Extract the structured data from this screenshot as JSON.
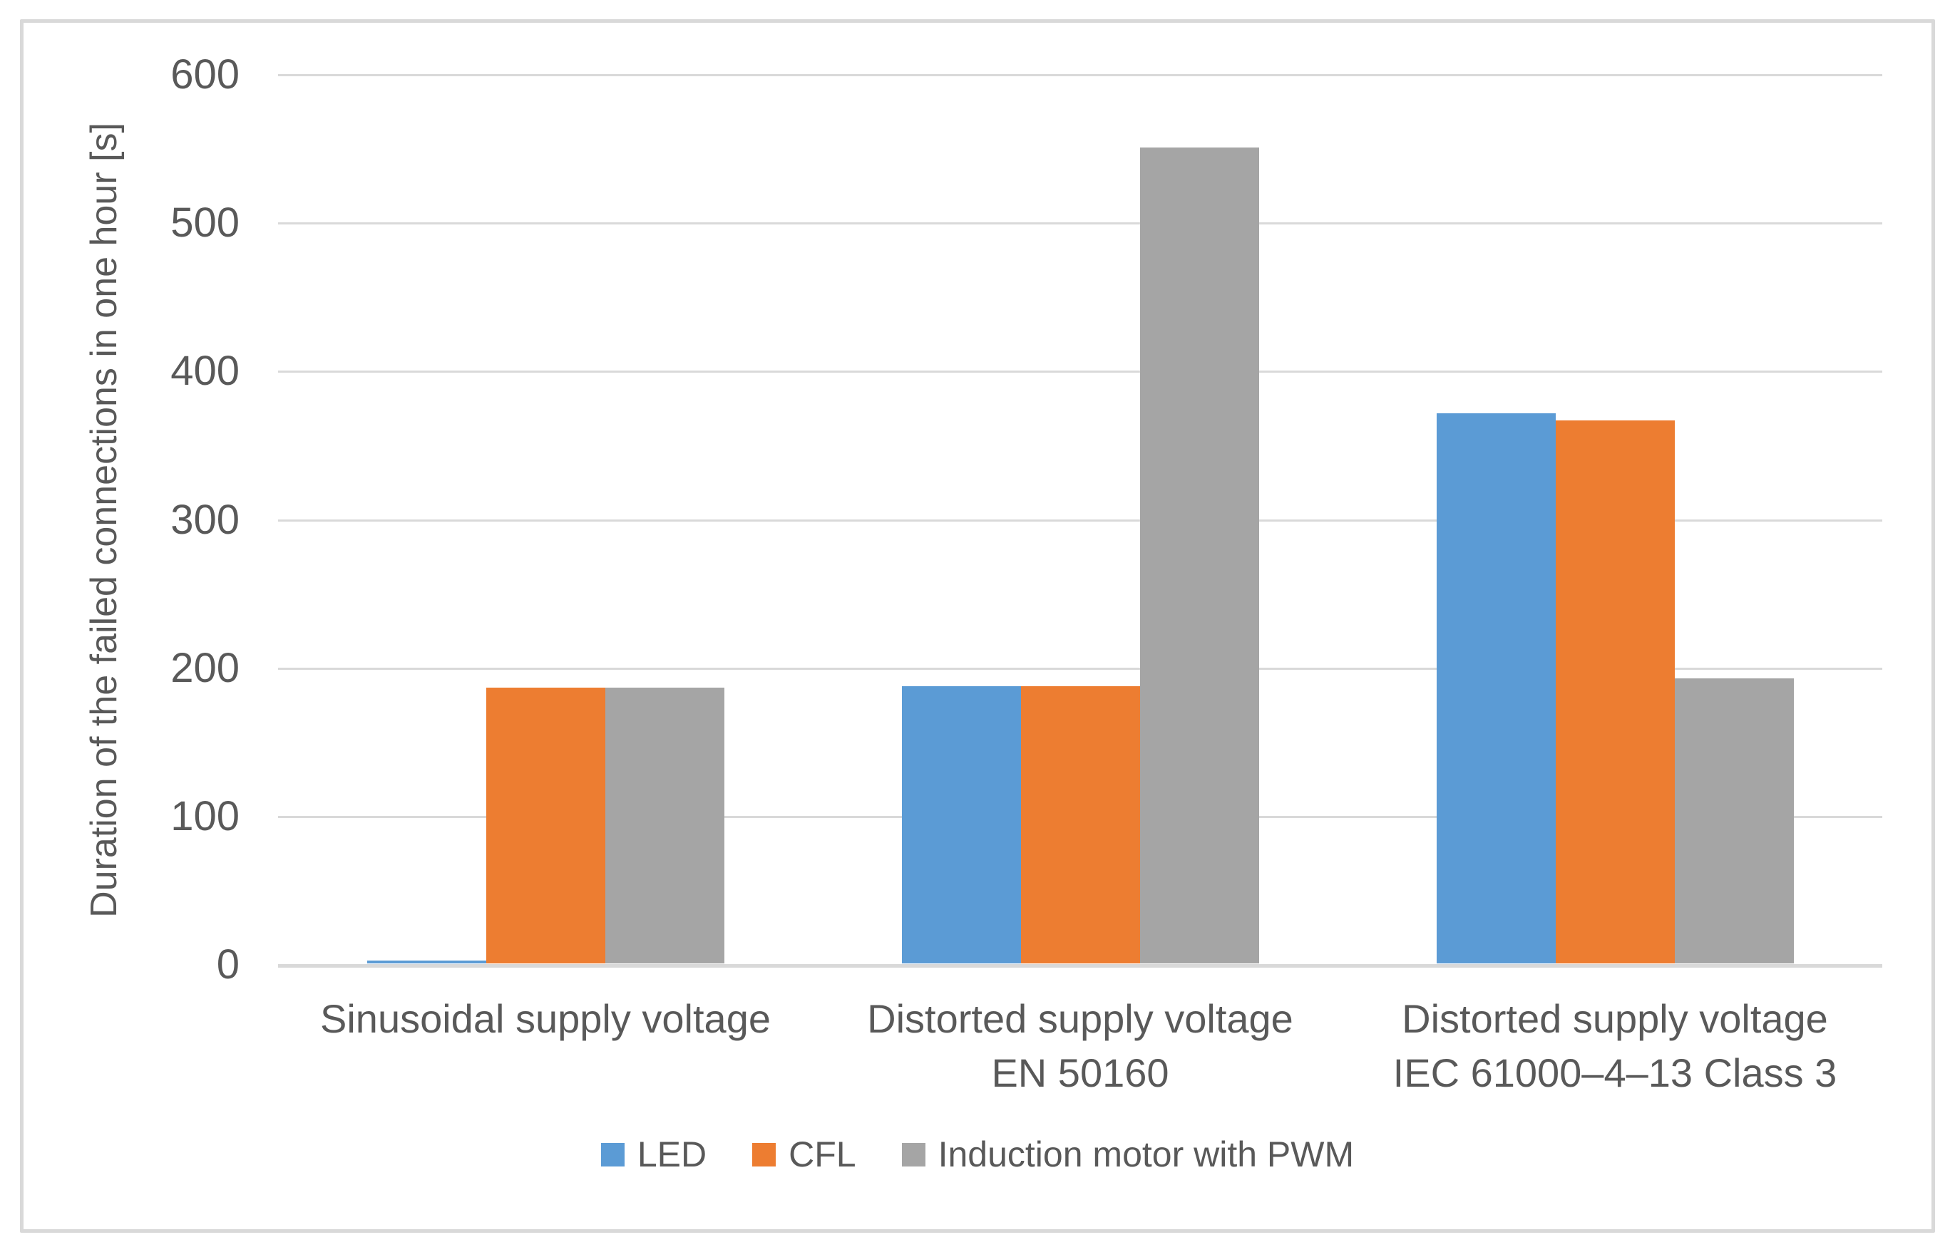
{
  "chart_data": {
    "type": "bar",
    "title": "",
    "xlabel": "",
    "ylabel": "Duration of the failed connections in one hour [s]",
    "ylim": [
      0,
      600
    ],
    "ytick_step": 100,
    "yticks": [
      0,
      100,
      200,
      300,
      400,
      500,
      600
    ],
    "grid": true,
    "legend_position": "bottom",
    "categories": [
      {
        "lines": [
          "Sinusoidal supply voltage"
        ]
      },
      {
        "lines": [
          "Distorted supply voltage",
          "EN 50160"
        ]
      },
      {
        "lines": [
          "Distorted supply voltage",
          "IEC 61000–4–13 Class 3"
        ]
      }
    ],
    "series": [
      {
        "name": "LED",
        "color": "#5B9BD5",
        "values": [
          2,
          187,
          371
        ]
      },
      {
        "name": "CFL",
        "color": "#ED7D31",
        "values": [
          186,
          187,
          366
        ]
      },
      {
        "name": "Induction motor with PWM",
        "color": "#A5A5A5",
        "values": [
          186,
          550,
          192
        ]
      }
    ]
  },
  "style_colors": {
    "text": "#595959",
    "gridline": "#D9D9D9",
    "chart_border": "#D9D9D9",
    "background": "#FFFFFF"
  }
}
